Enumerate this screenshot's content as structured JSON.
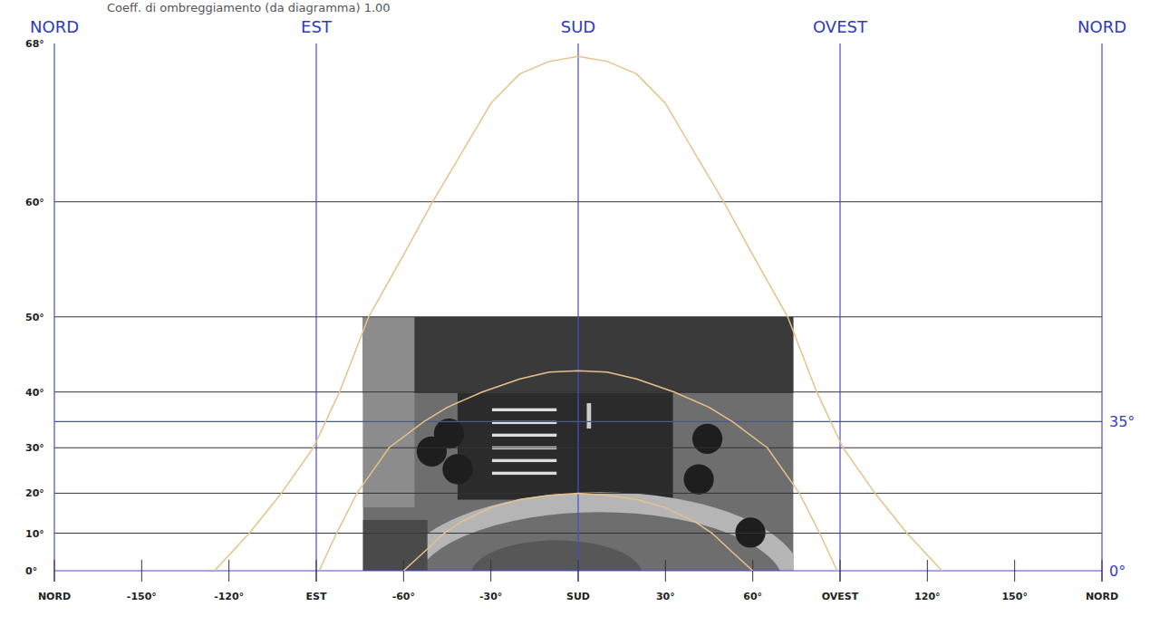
{
  "chart_data": {
    "type": "line",
    "title": "Coeff. di ombreggiamento (da diagramma) 1.00",
    "xlim": [
      -180,
      180
    ],
    "xticks": [
      {
        "value": -180,
        "label": "NORD"
      },
      {
        "value": -150,
        "label": "-150°"
      },
      {
        "value": -120,
        "label": "-120°"
      },
      {
        "value": -90,
        "label": "EST"
      },
      {
        "value": -60,
        "label": "-60°"
      },
      {
        "value": -30,
        "label": "-30°"
      },
      {
        "value": 0,
        "label": "SUD"
      },
      {
        "value": 30,
        "label": "30°"
      },
      {
        "value": 60,
        "label": "60°"
      },
      {
        "value": 90,
        "label": "OVEST"
      },
      {
        "value": 120,
        "label": "120°"
      },
      {
        "value": 150,
        "label": "150°"
      },
      {
        "value": 180,
        "label": "NORD"
      }
    ],
    "x2ticks": [
      {
        "value": -180,
        "label": "NORD"
      },
      {
        "value": -90,
        "label": "EST"
      },
      {
        "value": 0,
        "label": "SUD"
      },
      {
        "value": 90,
        "label": "OVEST"
      },
      {
        "value": 180,
        "label": "NORD"
      }
    ],
    "ylim": [
      0,
      68
    ],
    "yticks": [
      {
        "value": 0,
        "label": "0°"
      },
      {
        "value": 10,
        "label": "10°"
      },
      {
        "value": 20,
        "label": "20°"
      },
      {
        "value": 30,
        "label": "30°"
      },
      {
        "value": 40,
        "label": "40°"
      },
      {
        "value": 50,
        "label": "50°"
      },
      {
        "value": 60,
        "label": "60°"
      },
      {
        "value": 68,
        "label": "68°"
      }
    ],
    "grid": true,
    "annotations": [
      {
        "value": 35,
        "label": "35°"
      },
      {
        "value": 0,
        "label": "0°"
      }
    ],
    "obstruction_photo": {
      "x": [
        -74,
        74
      ],
      "y": [
        0,
        50
      ]
    },
    "series": [
      {
        "color": "#e6c28a",
        "x": [
          -125,
          -113,
          -102,
          -91,
          -82,
          -72,
          -60,
          -50,
          -40,
          -30,
          -20,
          -10,
          0,
          10,
          20,
          30,
          40,
          50,
          60,
          72,
          82,
          91,
          102,
          113,
          125
        ],
        "values": [
          0,
          10,
          20,
          30,
          40,
          50,
          56,
          60,
          63,
          65.5,
          66.8,
          67.3,
          67.5,
          67.3,
          66.8,
          65.5,
          63,
          60,
          56,
          50,
          40,
          30,
          20,
          10,
          0
        ]
      },
      {
        "color": "#e6c28a",
        "x": [
          -89,
          -83,
          -76,
          -65,
          -53,
          -45,
          -33,
          -20,
          -10,
          0,
          10,
          20,
          33,
          45,
          53,
          65,
          76,
          83,
          89
        ],
        "values": [
          0,
          10,
          20,
          30,
          35,
          37.5,
          40,
          42,
          43,
          43.2,
          43,
          42,
          40,
          37.5,
          35,
          30,
          20,
          10,
          0
        ]
      },
      {
        "color": "#e6c28a",
        "x": [
          -60,
          -53,
          -46,
          -40,
          -30,
          -20,
          -10,
          0,
          10,
          20,
          30,
          40,
          46,
          53,
          60
        ],
        "values": [
          0,
          5,
          10,
          13,
          16.5,
          18.5,
          19.5,
          20,
          19.5,
          18.5,
          16.5,
          13,
          10,
          5,
          0
        ]
      }
    ]
  }
}
